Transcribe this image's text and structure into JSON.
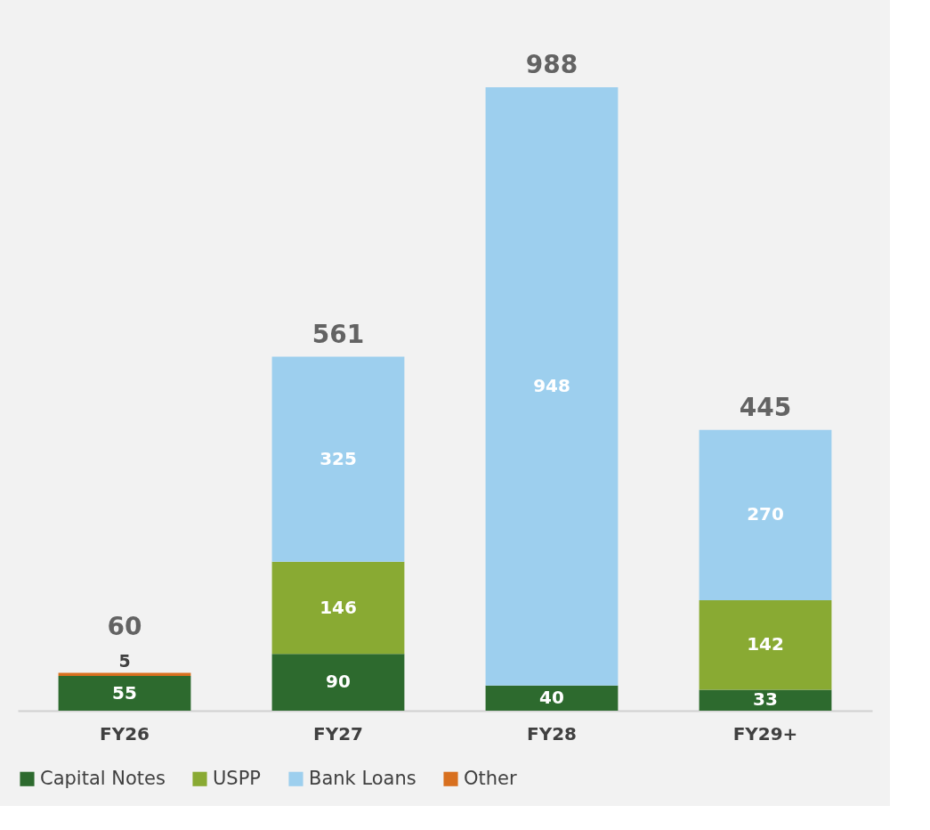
{
  "chart_data": {
    "type": "bar",
    "stacked": true,
    "data_labels": true,
    "legend": "bottom",
    "grid": false,
    "categories": [
      "FY26",
      "FY27",
      "FY28",
      "FY29+"
    ],
    "series": [
      {
        "name": "Capital Notes",
        "color": "#2d6a2e",
        "values": [
          55,
          90,
          40,
          33
        ]
      },
      {
        "name": "USPP",
        "color": "#89aa33",
        "values": [
          null,
          146,
          null,
          142
        ]
      },
      {
        "name": "Bank Loans",
        "color": "#9dcfee",
        "values": [
          null,
          325,
          948,
          270
        ]
      },
      {
        "name": "Other",
        "color": "#d8701f",
        "values": [
          5,
          null,
          null,
          null
        ]
      }
    ],
    "totals": [
      "60",
      "561",
      "988",
      "445"
    ]
  }
}
